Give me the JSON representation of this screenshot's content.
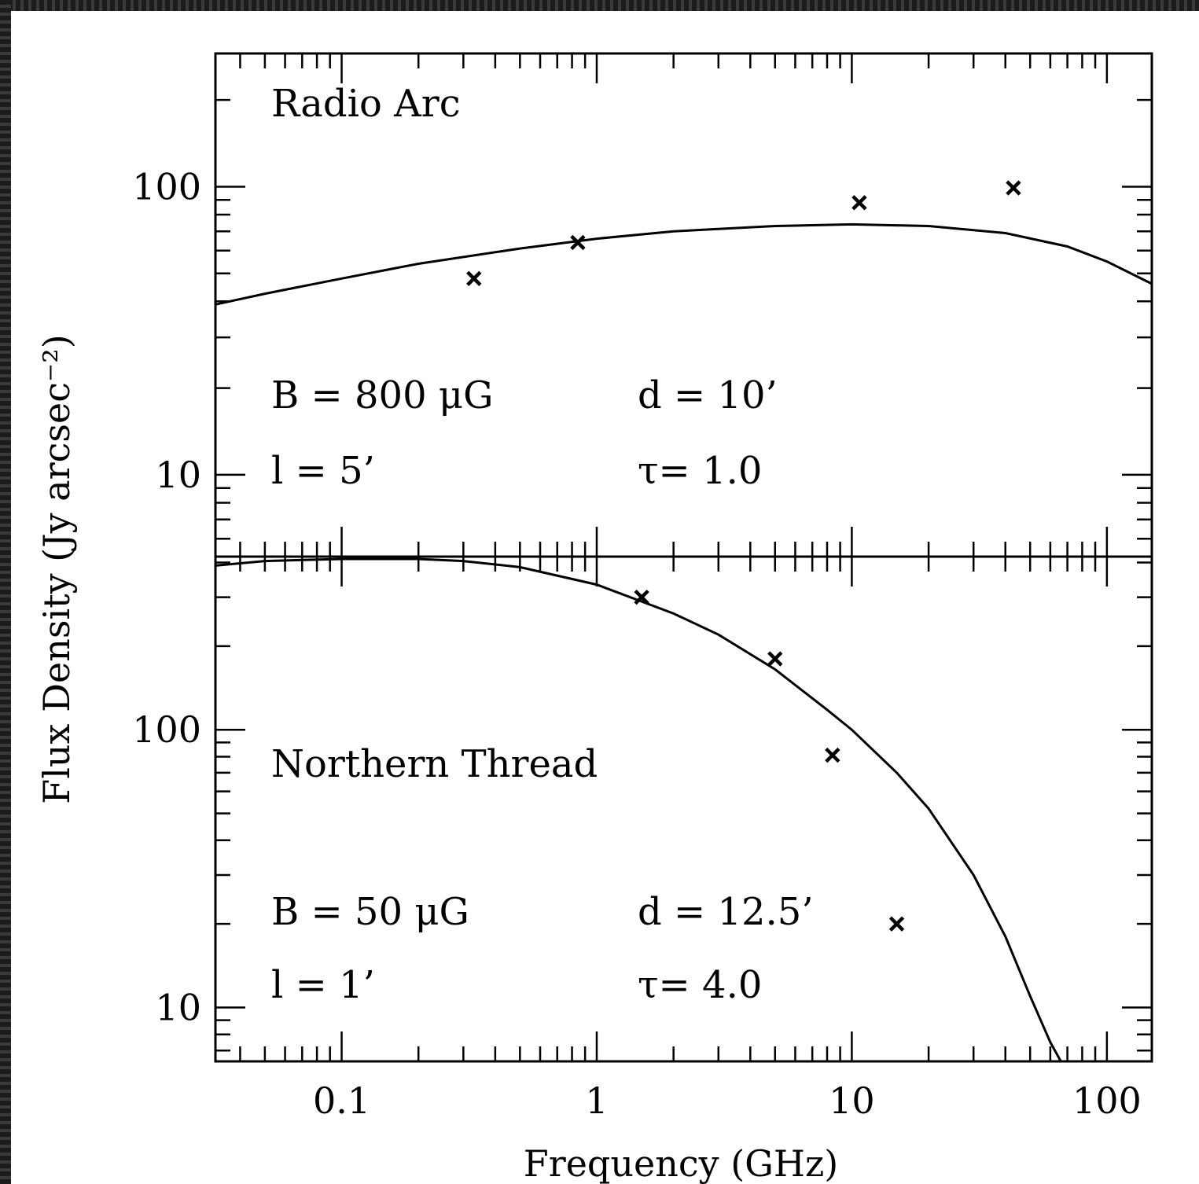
{
  "chart_data": [
    {
      "type": "scatter",
      "panel_label": "Radio Arc",
      "annotations": [
        "B = 800 μG",
        "d = 10’",
        "l = 5’",
        "τ= 1.0"
      ],
      "xscale": "log",
      "yscale": "log",
      "xlim": [
        0.032,
        150
      ],
      "ylim": [
        5.2,
        290
      ],
      "y_tick_labels": [
        "100",
        "10"
      ],
      "y_ticks": [
        100,
        10
      ],
      "points": [
        {
          "x": 0.33,
          "y": 48
        },
        {
          "x": 0.843,
          "y": 64
        },
        {
          "x": 10.7,
          "y": 88
        },
        {
          "x": 43,
          "y": 99
        }
      ],
      "model_curve": [
        {
          "x": 0.032,
          "y": 39
        },
        {
          "x": 0.05,
          "y": 42.5
        },
        {
          "x": 0.1,
          "y": 48
        },
        {
          "x": 0.2,
          "y": 54
        },
        {
          "x": 0.5,
          "y": 61
        },
        {
          "x": 1,
          "y": 66
        },
        {
          "x": 2,
          "y": 70
        },
        {
          "x": 5,
          "y": 73
        },
        {
          "x": 10,
          "y": 74
        },
        {
          "x": 20,
          "y": 73
        },
        {
          "x": 40,
          "y": 69
        },
        {
          "x": 70,
          "y": 62
        },
        {
          "x": 100,
          "y": 55
        },
        {
          "x": 150,
          "y": 46
        }
      ]
    },
    {
      "type": "scatter",
      "panel_label": "Northern Thread",
      "annotations": [
        "B = 50 μG",
        "d = 12.5’",
        "l = 1’",
        "τ= 4.0"
      ],
      "xscale": "log",
      "yscale": "log",
      "xlim": [
        0.032,
        150
      ],
      "ylim": [
        6.4,
        420
      ],
      "y_tick_labels": [
        "100",
        "10"
      ],
      "y_ticks": [
        100,
        10
      ],
      "points": [
        {
          "x": 1.5,
          "y": 300
        },
        {
          "x": 5,
          "y": 180
        },
        {
          "x": 8.4,
          "y": 81
        },
        {
          "x": 15,
          "y": 20
        }
      ],
      "model_curve": [
        {
          "x": 0.032,
          "y": 390
        },
        {
          "x": 0.05,
          "y": 405
        },
        {
          "x": 0.1,
          "y": 412
        },
        {
          "x": 0.2,
          "y": 412
        },
        {
          "x": 0.3,
          "y": 405
        },
        {
          "x": 0.5,
          "y": 385
        },
        {
          "x": 1,
          "y": 333
        },
        {
          "x": 2,
          "y": 262
        },
        {
          "x": 3,
          "y": 220
        },
        {
          "x": 5,
          "y": 165
        },
        {
          "x": 8,
          "y": 118
        },
        {
          "x": 10,
          "y": 100
        },
        {
          "x": 15,
          "y": 70
        },
        {
          "x": 20,
          "y": 52
        },
        {
          "x": 30,
          "y": 30
        },
        {
          "x": 40,
          "y": 18
        },
        {
          "x": 50,
          "y": 11
        },
        {
          "x": 60,
          "y": 7.5
        },
        {
          "x": 66,
          "y": 6.4
        }
      ]
    }
  ],
  "x_tick_labels": [
    "0.1",
    "1",
    "10",
    "100"
  ],
  "x_ticks": [
    0.1,
    1,
    10,
    100
  ],
  "xlabel": "Frequency (GHz)",
  "ylabel": "Flux Density (Jy arcsec⁻²)"
}
